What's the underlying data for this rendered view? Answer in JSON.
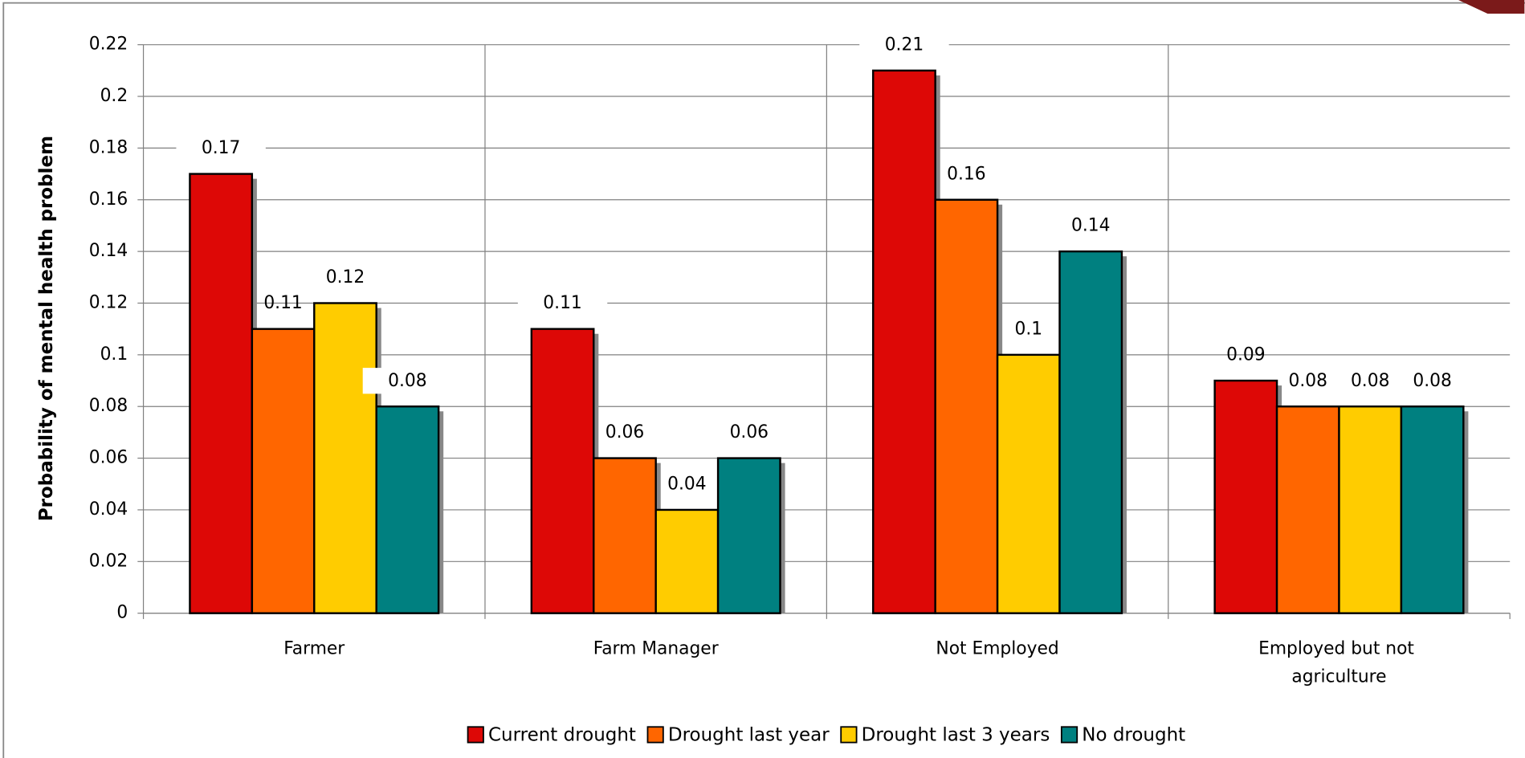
{
  "chart_data": {
    "type": "bar",
    "y_label": "Probability of mental health problem",
    "categories": [
      "Farmer",
      "Farm Manager",
      "Not Employed",
      "Employed but not agriculture"
    ],
    "series": [
      {
        "name": "Current drought",
        "color": "#dd0806",
        "values": [
          0.17,
          0.11,
          0.21,
          0.09
        ],
        "label_colors": [
          "#ff0000",
          "#d8505a",
          "#ff0000",
          "#000000"
        ]
      },
      {
        "name": "Drought last year",
        "color": "#ff6600",
        "values": [
          0.11,
          0.06,
          0.16,
          0.08
        ],
        "label_colors": [
          "#000000",
          "#000000",
          "#000000",
          "#000000"
        ]
      },
      {
        "name": "Drought last 3 years",
        "color": "#ffcc00",
        "values": [
          0.12,
          0.04,
          0.1,
          0.08
        ],
        "label_colors": [
          "#000000",
          "#000000",
          "#000000",
          "#000000"
        ]
      },
      {
        "name": "No drought",
        "color": "#008080",
        "values": [
          0.08,
          0.06,
          0.14,
          0.08
        ],
        "label_colors": [
          "#ff0000",
          "#d8505a",
          "#ff0000",
          "#000000"
        ]
      }
    ],
    "ylim": [
      0,
      0.22
    ],
    "yticks": [
      0,
      0.02,
      0.04,
      0.06,
      0.08,
      0.1,
      0.12,
      0.14,
      0.16,
      0.18,
      0.2,
      0.22
    ],
    "grid": true,
    "legend": "bottom"
  }
}
